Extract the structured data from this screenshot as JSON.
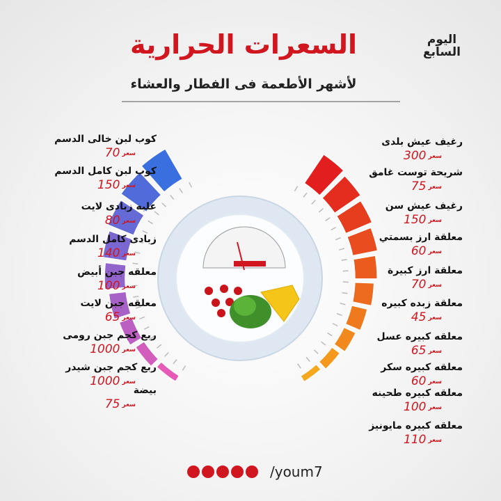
{
  "header": {
    "title": "السعرات الحرارية",
    "subtitle": "لأشهر الأطعمة فى الفطار والعشاء",
    "logo": "اليوم السابع"
  },
  "unit": "سعر",
  "left_items": [
    {
      "name": "كوب لبن خالى الدسم",
      "value": 70
    },
    {
      "name": "كوب لبن كامل الدسم",
      "value": 150
    },
    {
      "name": "علبه زبادى لايت",
      "value": 80
    },
    {
      "name": "زبادى كامل الدسم",
      "value": 140
    },
    {
      "name": "معلقه جبن أبيض",
      "value": 100
    },
    {
      "name": "معلقه جبن لايت",
      "value": 65
    },
    {
      "name": "ربع كجم جبن رومى",
      "value": 1000
    },
    {
      "name": "ربع كجم جبن شيدر",
      "value": 1000
    },
    {
      "name": "بيضة",
      "value": 75
    }
  ],
  "right_items": [
    {
      "name": "رغيف عيش بلدى",
      "value": 300
    },
    {
      "name": "شريحة توست غامق",
      "value": 75
    },
    {
      "name": "رغيف عيش سن",
      "value": 150
    },
    {
      "name": "معلقة ارز بسمتي",
      "value": 60
    },
    {
      "name": "معلقة ارز كبيرة",
      "value": 70
    },
    {
      "name": "معلقة زبده كبيره",
      "value": 45
    },
    {
      "name": "معلقه كبيره عسل",
      "value": 65
    },
    {
      "name": "معلقه كبيره سكر",
      "value": 60
    },
    {
      "name": "معلقه كبيره طحينه",
      "value": 100
    },
    {
      "name": "معلقه كبيره مايونيز",
      "value": 110
    }
  ],
  "footer": {
    "handle": "/youm7"
  }
}
